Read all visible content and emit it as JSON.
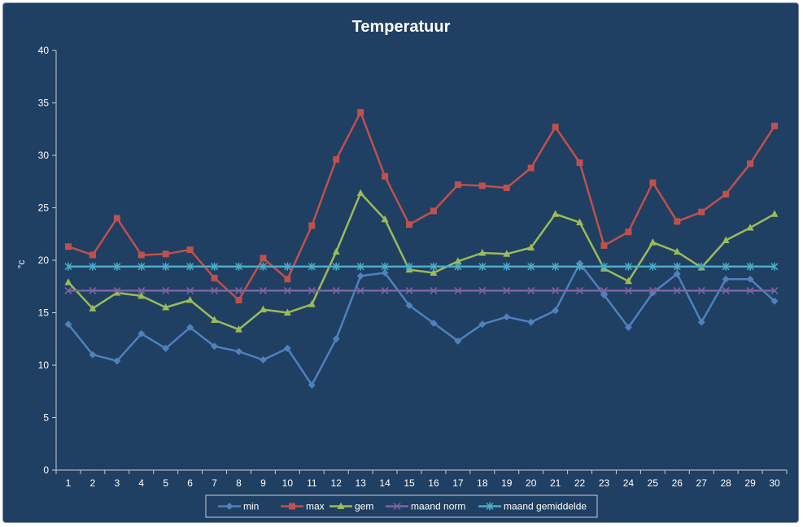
{
  "chart_data": {
    "type": "line",
    "title": "Temperatuur",
    "xlabel": "",
    "ylabel": "°c",
    "ylim": [
      0,
      40
    ],
    "yticks": [
      0,
      5,
      10,
      15,
      20,
      25,
      30,
      35,
      40
    ],
    "grid": false,
    "legend_position": "bottom",
    "categories": [
      "1",
      "2",
      "3",
      "4",
      "5",
      "6",
      "7",
      "8",
      "9",
      "10",
      "11",
      "12",
      "13",
      "14",
      "15",
      "16",
      "17",
      "18",
      "19",
      "20",
      "21",
      "22",
      "23",
      "24",
      "25",
      "26",
      "27",
      "28",
      "29",
      "30"
    ],
    "series": [
      {
        "name": "min",
        "color": "#4f81bd",
        "marker": "diamond",
        "values": [
          13.9,
          11.0,
          10.4,
          13.0,
          11.6,
          13.6,
          11.8,
          11.3,
          10.5,
          11.6,
          8.1,
          12.5,
          18.5,
          18.8,
          15.7,
          14.0,
          12.3,
          13.9,
          14.6,
          14.1,
          15.2,
          19.7,
          16.7,
          13.6,
          16.9,
          18.7,
          14.1,
          18.2,
          18.2,
          16.1
        ]
      },
      {
        "name": "max",
        "color": "#c0504d",
        "marker": "square",
        "values": [
          21.3,
          20.5,
          24.0,
          20.5,
          20.6,
          21.0,
          18.3,
          16.2,
          20.2,
          18.2,
          23.3,
          29.6,
          34.1,
          28.0,
          23.4,
          24.7,
          27.2,
          27.1,
          26.9,
          28.8,
          32.7,
          29.3,
          21.4,
          22.7,
          27.4,
          23.7,
          24.6,
          26.3,
          29.2,
          32.8
        ]
      },
      {
        "name": "gem",
        "color": "#9bbb59",
        "marker": "triangle",
        "values": [
          17.9,
          15.4,
          16.9,
          16.6,
          15.5,
          16.2,
          14.3,
          13.4,
          15.3,
          15.0,
          15.8,
          20.8,
          26.4,
          23.9,
          19.1,
          18.8,
          19.9,
          20.7,
          20.6,
          21.2,
          24.4,
          23.6,
          19.2,
          18.0,
          21.7,
          20.8,
          19.3,
          21.9,
          23.1,
          24.4
        ]
      },
      {
        "name": "maand norm",
        "color": "#8064a2",
        "marker": "x",
        "values": [
          17.1,
          17.1,
          17.1,
          17.1,
          17.1,
          17.1,
          17.1,
          17.1,
          17.1,
          17.1,
          17.1,
          17.1,
          17.1,
          17.1,
          17.1,
          17.1,
          17.1,
          17.1,
          17.1,
          17.1,
          17.1,
          17.1,
          17.1,
          17.1,
          17.1,
          17.1,
          17.1,
          17.1,
          17.1,
          17.1
        ]
      },
      {
        "name": "maand gemiddelde",
        "color": "#4bacc6",
        "marker": "star",
        "values": [
          19.4,
          19.4,
          19.4,
          19.4,
          19.4,
          19.4,
          19.4,
          19.4,
          19.4,
          19.4,
          19.4,
          19.4,
          19.4,
          19.4,
          19.4,
          19.4,
          19.4,
          19.4,
          19.4,
          19.4,
          19.4,
          19.4,
          19.4,
          19.4,
          19.4,
          19.4,
          19.4,
          19.4,
          19.4,
          19.4
        ]
      }
    ]
  }
}
